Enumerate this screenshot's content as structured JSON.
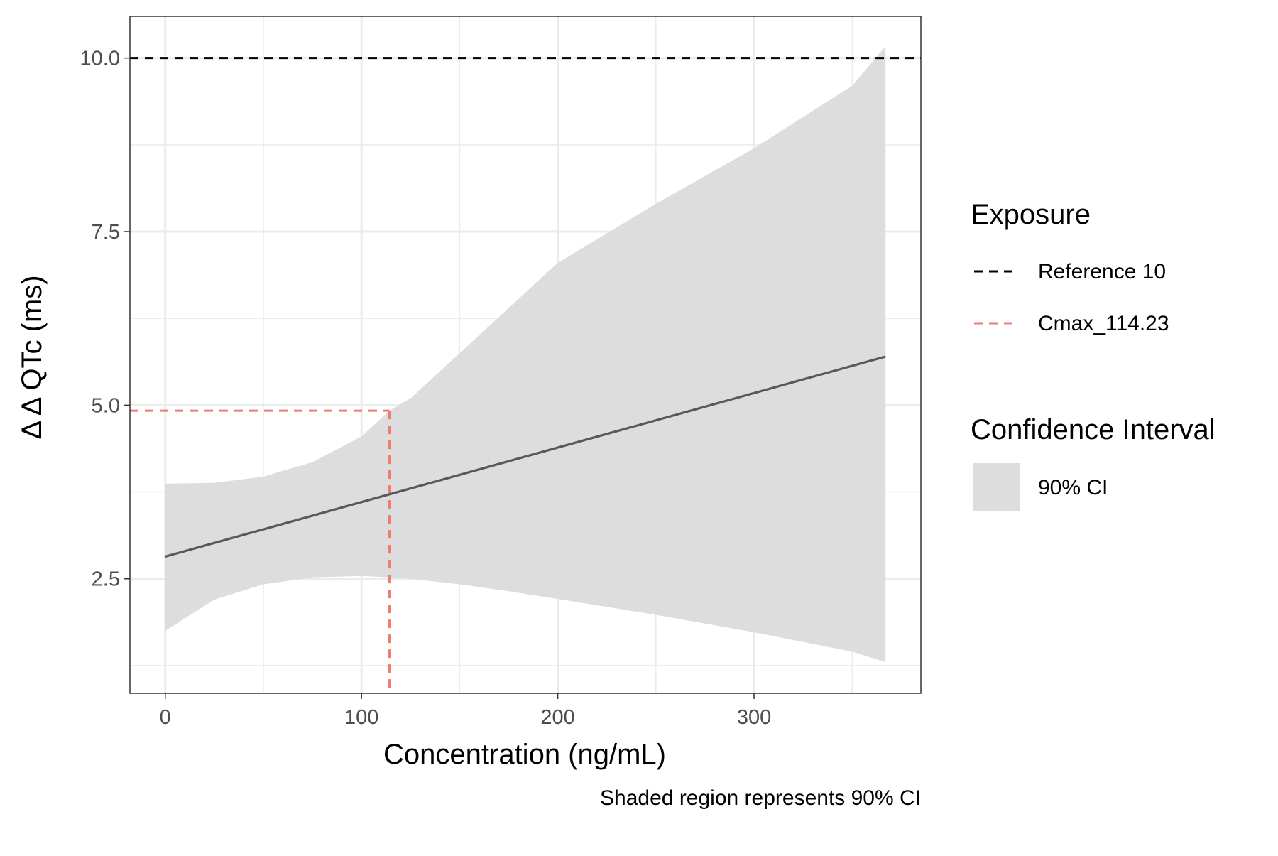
{
  "chart_data": {
    "type": "line",
    "xlabel": "Concentration (ng/mL)",
    "ylabel": "Δ Δ QTc (ms)",
    "caption": "Shaded region represents 90% CI",
    "xlim": [
      -18,
      385
    ],
    "ylim": [
      0.85,
      10.6
    ],
    "x_ticks": [
      0,
      100,
      200,
      300
    ],
    "x_tick_labels": [
      "0",
      "100",
      "200",
      "300"
    ],
    "y_ticks": [
      2.5,
      5.0,
      7.5,
      10.0
    ],
    "y_tick_labels": [
      "2.5",
      "5.0",
      "7.5",
      "10.0"
    ],
    "grid": true,
    "legend_position": "right",
    "regression_line": {
      "color": "#595959",
      "x": [
        0,
        367
      ],
      "y": [
        2.82,
        5.7
      ]
    },
    "ci_band": {
      "label": "90% CI",
      "color": "#dddddd",
      "x": [
        0,
        25,
        50,
        75,
        100,
        114.23,
        125,
        150,
        175,
        200,
        250,
        300,
        350,
        367
      ],
      "lower": [
        1.75,
        2.2,
        2.42,
        2.52,
        2.54,
        2.52,
        2.5,
        2.42,
        2.32,
        2.21,
        1.98,
        1.73,
        1.45,
        1.3
      ],
      "upper": [
        3.87,
        3.88,
        3.97,
        4.18,
        4.55,
        4.92,
        5.1,
        5.75,
        6.4,
        7.05,
        7.9,
        8.7,
        9.6,
        10.17
      ]
    },
    "reference_line": {
      "name": "Reference 10",
      "y": 10.0,
      "color": "#000000"
    },
    "cmax_marker": {
      "name": "Cmax_114.23",
      "x": 114.23,
      "y": 4.92,
      "color": "#f07b72"
    },
    "legend": {
      "groups": [
        {
          "title": "Exposure",
          "entries": [
            {
              "label": "Reference 10",
              "kind": "dashed-line",
              "color": "#000000"
            },
            {
              "label": "Cmax_114.23",
              "kind": "dashed-line",
              "color": "#f07b72"
            }
          ]
        },
        {
          "title": "Confidence Interval",
          "entries": [
            {
              "label": "90% CI",
              "kind": "fill",
              "color": "#dddddd"
            }
          ]
        }
      ]
    }
  }
}
